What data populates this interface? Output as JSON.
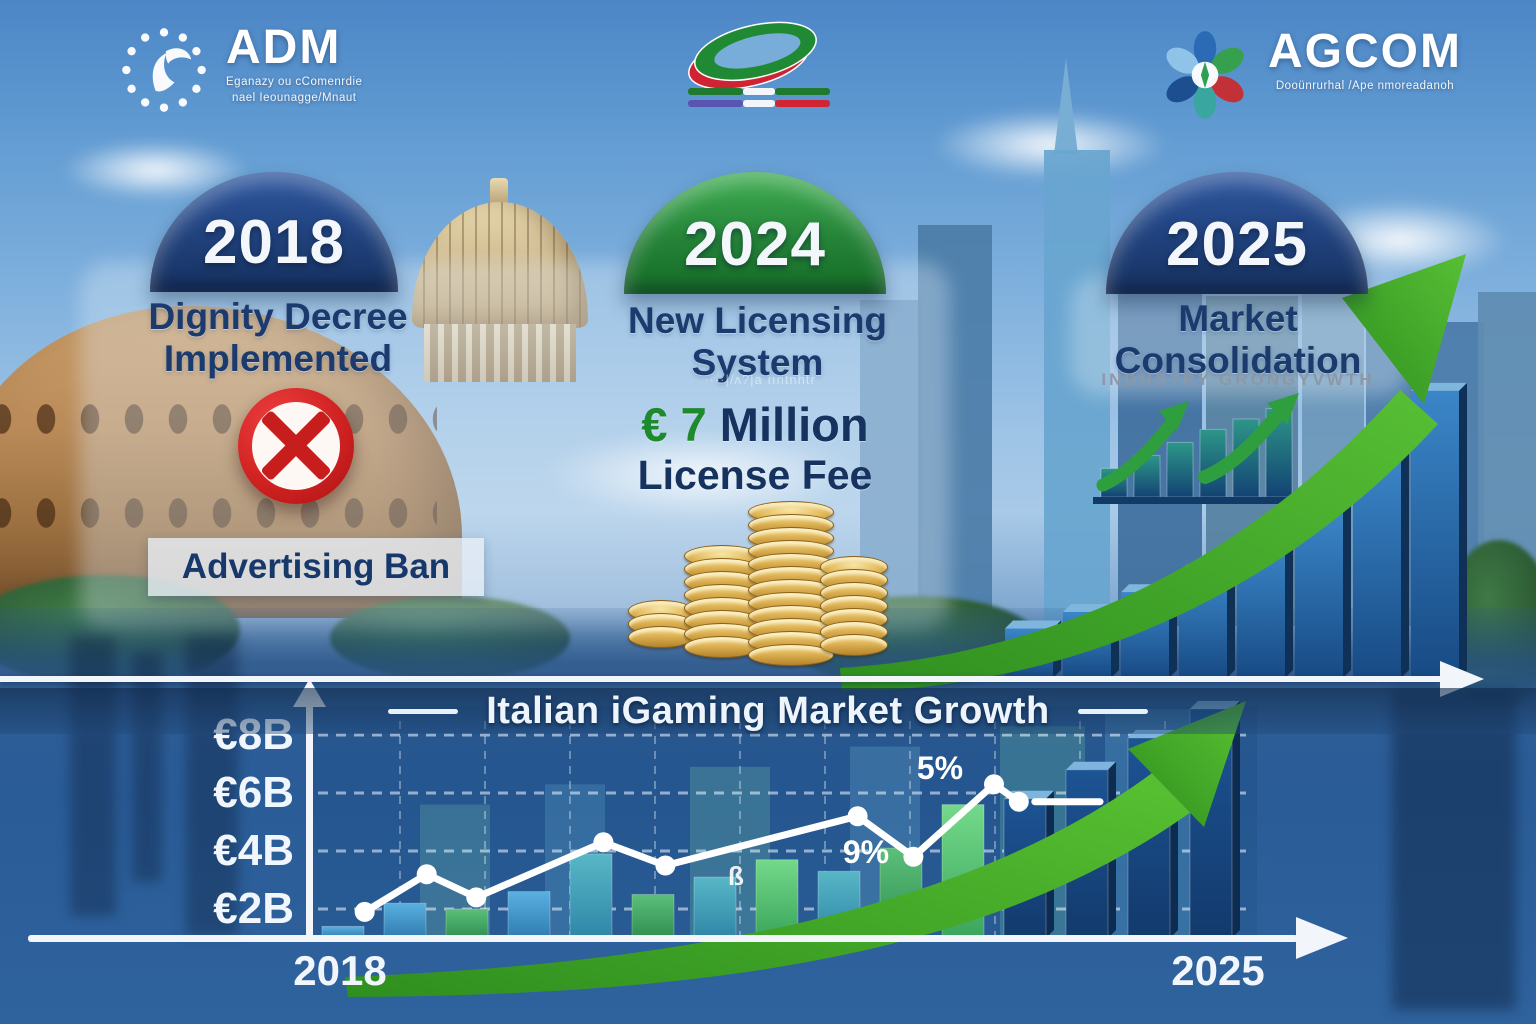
{
  "logos": {
    "adm": {
      "name": "ADM",
      "tagline1": "Eganazy ou cComenrdie",
      "tagline2": "nael Ieounagge/Mnaut"
    },
    "agcom": {
      "name": "AGCOM",
      "tagline": "Dooünrurhal /Ape nmoreadanoh"
    }
  },
  "timeline": [
    {
      "year": "2018",
      "title1": "Dignity Decree",
      "title2": "Implemented"
    },
    {
      "year": "2024",
      "title1": "New Licensing",
      "title2": "System",
      "watermark": "····|/ʌ?|a ııntnhtr"
    },
    {
      "year": "2025",
      "title1": "Market",
      "title2": "Consolidation",
      "subtitle": "INDUSTRY GRONGYVWTH"
    }
  ],
  "license_fee": {
    "amount": "€ 7",
    "unit": "Million",
    "label": "License Fee"
  },
  "ban": {
    "label": "Advertising Ban"
  },
  "decor": {
    "coin_stacks": [
      3,
      8,
      12,
      7
    ]
  },
  "chart_data": [
    {
      "type": "bar",
      "name": "italian-igaming-market-growth",
      "title": "Italian iGaming Market Growth",
      "ylabels": [
        "€8B",
        "€6B",
        "€4B",
        "€2B"
      ],
      "ytick_values": [
        8,
        6,
        4,
        2
      ],
      "ylim": [
        0,
        9
      ],
      "xlabels": [
        "2018",
        "2025"
      ],
      "grid": "dashed white",
      "legend_position": "none",
      "bars": [
        {
          "value": 1.4,
          "color": "blue"
        },
        {
          "value": 2.2,
          "color": "blue"
        },
        {
          "value": 2.0,
          "color": "green"
        },
        {
          "value": 2.6,
          "color": "blue"
        },
        {
          "value": 3.9,
          "color": "teal"
        },
        {
          "value": 2.5,
          "color": "green"
        },
        {
          "value": 3.1,
          "color": "teal"
        },
        {
          "value": 3.7,
          "color": "brightgreen"
        },
        {
          "value": 3.3,
          "color": "teal"
        },
        {
          "value": 4.1,
          "color": "green"
        },
        {
          "value": 5.6,
          "color": "brightgreen"
        },
        {
          "value": 5.8,
          "color": "navy3d"
        },
        {
          "value": 6.8,
          "color": "navy3d"
        },
        {
          "value": 7.9,
          "color": "navy3d"
        },
        {
          "value": 8.9,
          "color": "navy3d"
        }
      ],
      "line": {
        "color": "#ffffff",
        "points": [
          [
            0.35,
            1.9
          ],
          [
            1.35,
            3.2
          ],
          [
            2.15,
            2.4
          ],
          [
            4.2,
            4.3
          ],
          [
            5.2,
            3.5
          ],
          [
            8.3,
            5.2
          ],
          [
            9.2,
            3.8
          ],
          [
            10.5,
            6.3
          ],
          [
            10.9,
            5.7
          ]
        ]
      },
      "annotations": [
        {
          "text": "5%"
        },
        {
          "text": "9%"
        },
        {
          "text": "ß"
        }
      ]
    },
    {
      "type": "bar",
      "name": "city-growth-bars",
      "values": [
        1.5,
        2.0,
        2.6,
        3.2,
        4.1,
        5.1,
        6.8,
        8.7
      ],
      "has_trend_arrow": true
    },
    {
      "type": "bar",
      "name": "growth-trend-icon",
      "values": [
        1.1,
        1.6,
        2.1,
        2.6,
        3.0,
        3.4
      ],
      "has_trend_arrow": true
    }
  ]
}
